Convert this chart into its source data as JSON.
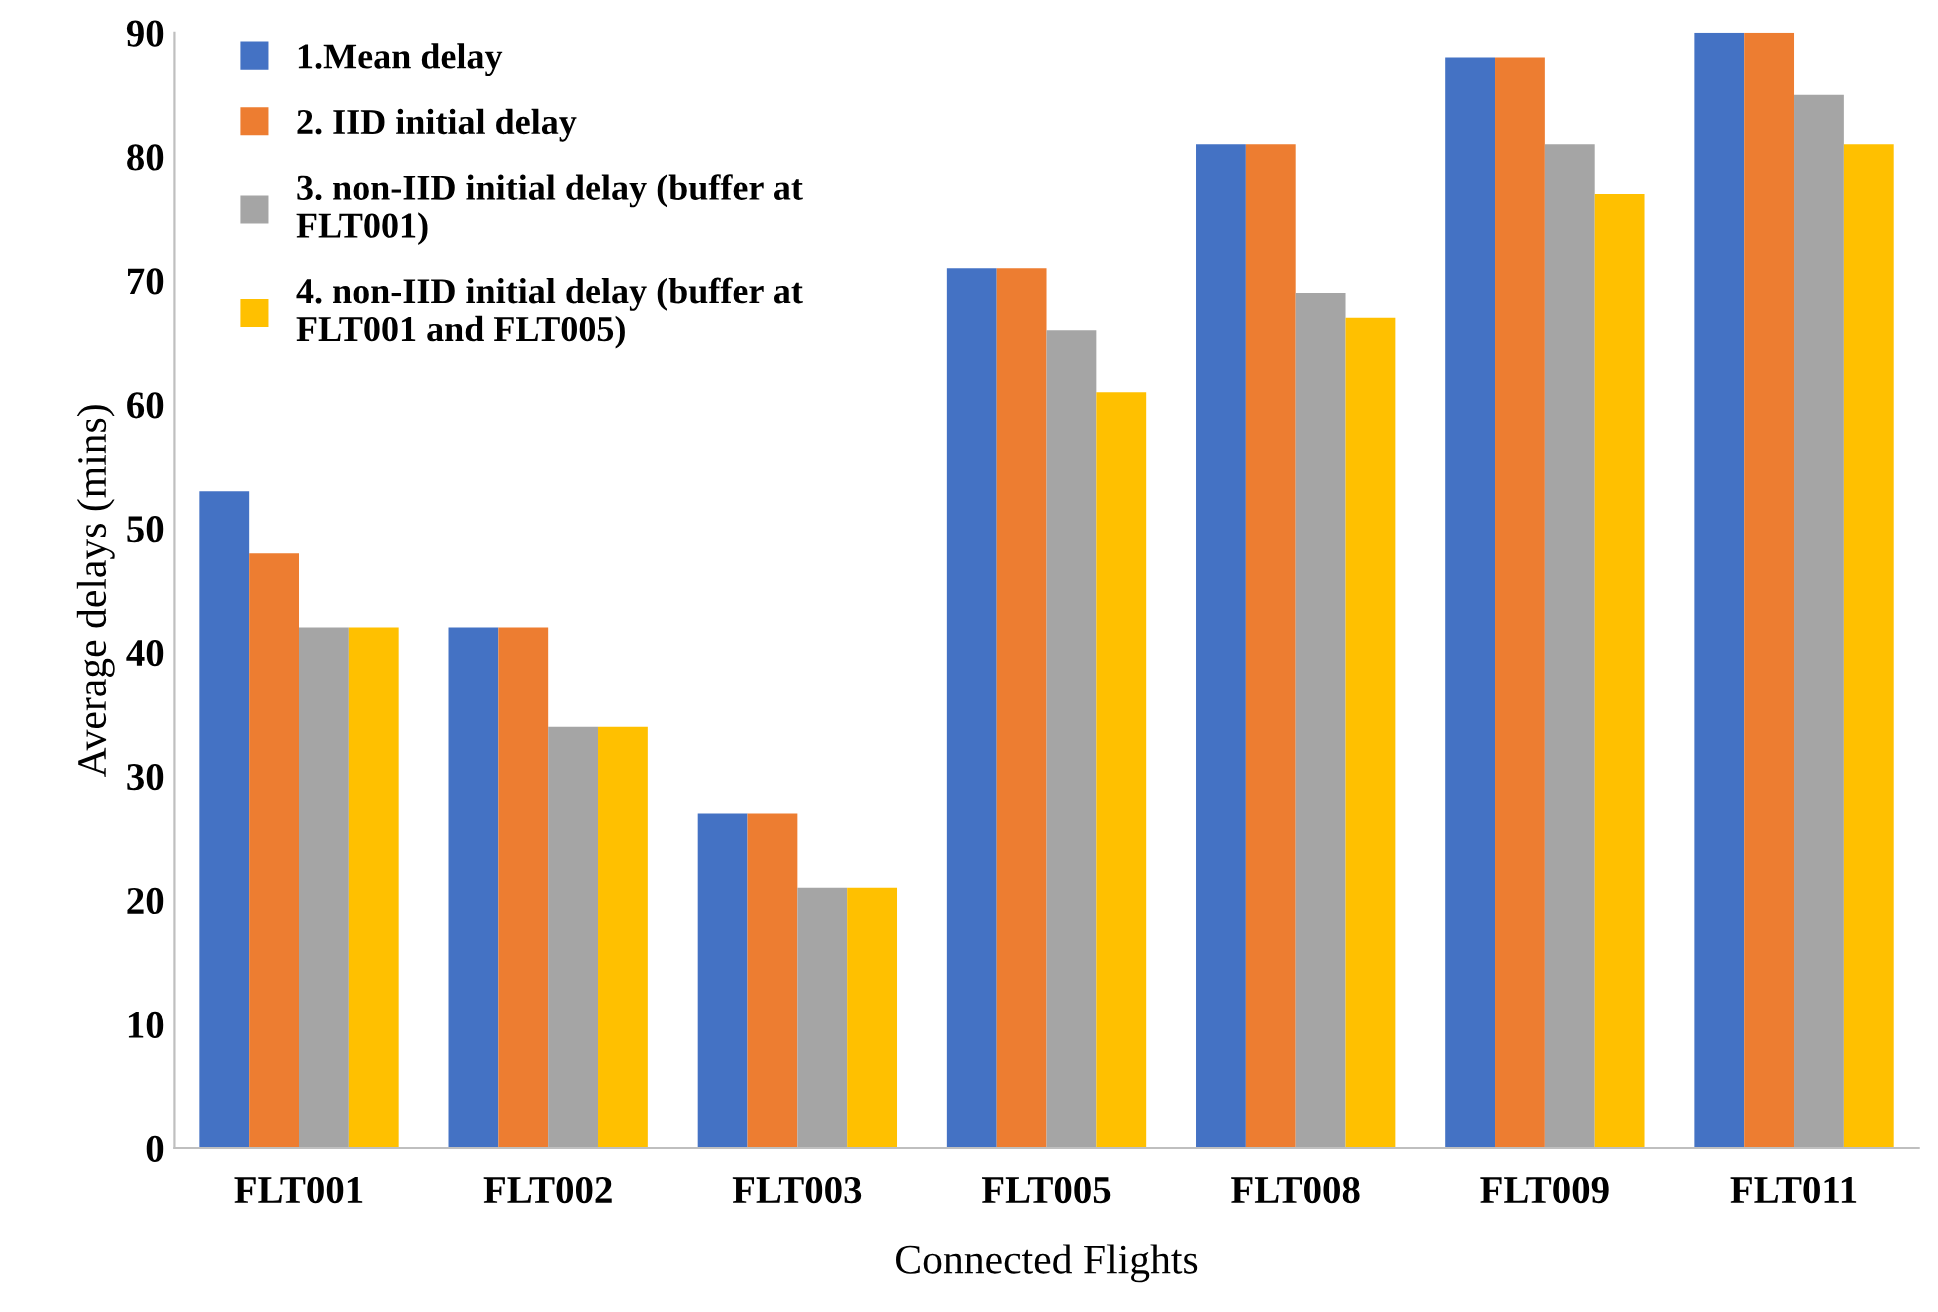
{
  "chart_data": {
    "type": "bar",
    "xlabel": "Connected Flights",
    "ylabel": "Average delays (mins)",
    "categories": [
      "FLT001",
      "FLT002",
      "FLT003",
      "FLT005",
      "FLT008",
      "FLT009",
      "FLT011"
    ],
    "series": [
      {
        "name": "1.Mean delay",
        "color": "#4472c4",
        "values": [
          53,
          42,
          27,
          71,
          81,
          88,
          90
        ]
      },
      {
        "name": "2. IID initial delay",
        "color": "#ed7d31",
        "values": [
          48,
          42,
          27,
          71,
          81,
          88,
          90
        ]
      },
      {
        "name": "3. non-IID initial delay (buffer at\nFLT001)",
        "color": "#a5a5a5",
        "values": [
          42,
          34,
          21,
          66,
          69,
          81,
          85
        ]
      },
      {
        "name": "4. non-IID initial delay (buffer at\nFLT001 and FLT005)",
        "color": "#ffc000",
        "values": [
          42,
          34,
          21,
          61,
          67,
          77,
          81
        ]
      }
    ],
    "ylim": [
      0,
      90
    ],
    "yticks": [
      0,
      10,
      20,
      30,
      40,
      50,
      60,
      70,
      80,
      90
    ],
    "grid": false,
    "legend": "top left"
  }
}
